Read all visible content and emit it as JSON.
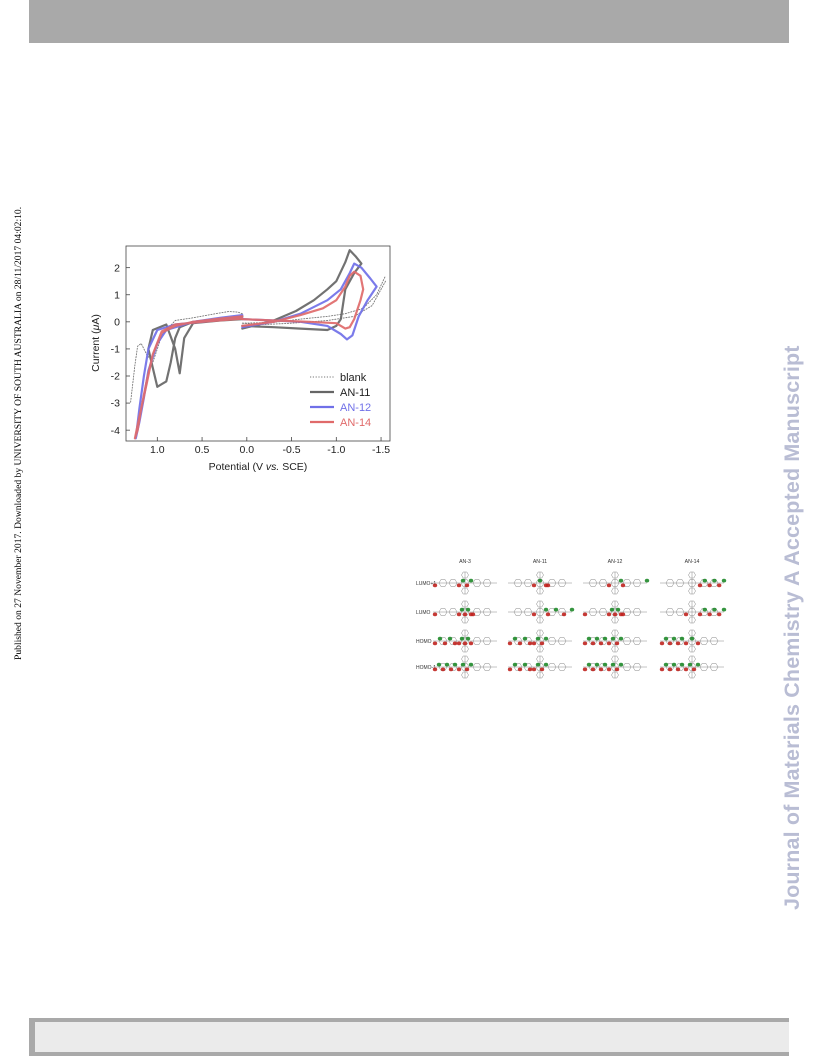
{
  "header": {},
  "side_note": "Published on 27 November 2017. Downloaded by UNIVERSITY OF SOUTH AUSTRALIA on 28/11/2017 04:02:10.",
  "watermark": "Journal of Materials Chemistry A Accepted Manuscript",
  "chart_data": {
    "type": "line",
    "xlabel_parts": [
      "Potential (V ",
      "vs.",
      " SCE)"
    ],
    "ylabel_parts": [
      "Current (",
      "μ",
      "A)"
    ],
    "xlim": [
      1.35,
      -1.6
    ],
    "ylim": [
      -4.4,
      2.8
    ],
    "xticks": [
      1.0,
      0.5,
      0.0,
      -0.5,
      -1.0,
      -1.5
    ],
    "xtick_labels": [
      "1.0",
      "0.5",
      "0.0",
      "-0.5",
      "-1.0",
      "-1.5"
    ],
    "yticks": [
      2,
      1,
      0,
      -1,
      -2,
      -3,
      -4
    ],
    "ytick_labels": [
      "2",
      "1",
      "0",
      "-1",
      "-2",
      "-3",
      "-4"
    ],
    "legend_position": "bottom-right",
    "colors": {
      "blank": "#777777",
      "AN-11": "#666666",
      "AN-12": "#7070e8",
      "AN-14": "#e06a6a"
    },
    "series": [
      {
        "name": "blank",
        "style": "dotted",
        "segments": [
          [
            [
              0.05,
              0.3
            ],
            [
              0.1,
              0.36
            ],
            [
              0.2,
              0.38
            ],
            [
              0.35,
              0.3
            ],
            [
              0.6,
              0.15
            ],
            [
              0.8,
              0.05
            ],
            [
              0.95,
              -0.5
            ],
            [
              1.05,
              -1.5
            ],
            [
              1.12,
              -1.2
            ],
            [
              1.18,
              -0.8
            ],
            [
              1.22,
              -0.9
            ],
            [
              1.25,
              -1.6
            ],
            [
              1.3,
              -3.0
            ]
          ],
          [
            [
              0.05,
              -0.05
            ],
            [
              -0.3,
              -0.02
            ],
            [
              -0.6,
              0.1
            ],
            [
              -0.9,
              0.2
            ],
            [
              -1.1,
              0.3
            ],
            [
              -1.3,
              0.5
            ],
            [
              -1.45,
              1.0
            ],
            [
              -1.55,
              1.7
            ]
          ],
          [
            [
              -1.55,
              1.5
            ],
            [
              -1.4,
              0.6
            ],
            [
              -1.2,
              0.2
            ],
            [
              -0.9,
              0.05
            ],
            [
              -0.5,
              -0.05
            ],
            [
              -0.2,
              -0.1
            ],
            [
              0.05,
              -0.05
            ]
          ]
        ]
      },
      {
        "name": "AN-11",
        "style": "solid",
        "segments": [
          [
            [
              0.05,
              -0.25
            ],
            [
              -0.3,
              0.05
            ],
            [
              -0.55,
              0.4
            ],
            [
              -0.75,
              0.8
            ],
            [
              -0.9,
              1.2
            ],
            [
              -1.0,
              1.5
            ],
            [
              -1.1,
              2.2
            ],
            [
              -1.15,
              2.65
            ],
            [
              -1.22,
              2.4
            ],
            [
              -1.28,
              2.15
            ],
            [
              -1.2,
              1.8
            ],
            [
              -1.1,
              1.2
            ],
            [
              -1.05,
              0.1
            ],
            [
              -1.0,
              -0.15
            ],
            [
              -0.9,
              -0.3
            ],
            [
              -0.6,
              -0.25
            ],
            [
              -0.3,
              -0.2
            ],
            [
              0.05,
              -0.15
            ]
          ],
          [
            [
              0.05,
              0.2
            ],
            [
              0.3,
              0.1
            ],
            [
              0.6,
              0.0
            ],
            [
              0.75,
              -0.2
            ],
            [
              0.8,
              -0.6
            ],
            [
              0.85,
              -1.5
            ],
            [
              0.9,
              -2.2
            ],
            [
              0.95,
              -2.3
            ],
            [
              1.0,
              -2.4
            ],
            [
              1.05,
              -1.7
            ],
            [
              1.1,
              -1.0
            ],
            [
              1.05,
              -0.3
            ],
            [
              0.9,
              -0.1
            ],
            [
              0.8,
              -1.0
            ],
            [
              0.75,
              -1.9
            ],
            [
              0.7,
              -0.6
            ],
            [
              0.6,
              -0.05
            ],
            [
              0.3,
              0.05
            ],
            [
              0.05,
              0.1
            ]
          ]
        ]
      },
      {
        "name": "AN-12",
        "style": "solid",
        "segments": [
          [
            [
              0.05,
              -0.2
            ],
            [
              -0.3,
              0.0
            ],
            [
              -0.6,
              0.3
            ],
            [
              -0.9,
              0.8
            ],
            [
              -1.05,
              1.2
            ],
            [
              -1.15,
              1.8
            ],
            [
              -1.2,
              2.15
            ],
            [
              -1.28,
              2.0
            ],
            [
              -1.38,
              1.6
            ],
            [
              -1.45,
              1.3
            ],
            [
              -1.35,
              0.8
            ],
            [
              -1.25,
              0.2
            ],
            [
              -1.18,
              -0.5
            ],
            [
              -1.12,
              -0.65
            ],
            [
              -1.05,
              -0.45
            ],
            [
              -0.9,
              -0.15
            ],
            [
              -0.6,
              0.0
            ],
            [
              -0.3,
              0.05
            ],
            [
              0.05,
              0.1
            ]
          ],
          [
            [
              0.05,
              0.25
            ],
            [
              0.3,
              0.15
            ],
            [
              0.6,
              0.0
            ],
            [
              0.75,
              -0.15
            ],
            [
              0.9,
              -0.3
            ],
            [
              1.0,
              -0.8
            ],
            [
              1.1,
              -1.8
            ],
            [
              1.15,
              -2.8
            ],
            [
              1.2,
              -3.7
            ],
            [
              1.24,
              -4.3
            ],
            [
              1.2,
              -3.2
            ],
            [
              1.15,
              -2.0
            ],
            [
              1.1,
              -1.0
            ],
            [
              1.0,
              -0.3
            ],
            [
              0.8,
              -0.1
            ],
            [
              0.5,
              0.0
            ],
            [
              0.2,
              0.1
            ],
            [
              0.05,
              0.15
            ]
          ]
        ]
      },
      {
        "name": "AN-14",
        "style": "solid",
        "segments": [
          [
            [
              0.05,
              -0.15
            ],
            [
              -0.3,
              0.0
            ],
            [
              -0.6,
              0.25
            ],
            [
              -0.85,
              0.5
            ],
            [
              -1.0,
              0.8
            ],
            [
              -1.1,
              1.3
            ],
            [
              -1.15,
              1.7
            ],
            [
              -1.2,
              1.85
            ],
            [
              -1.27,
              1.7
            ],
            [
              -1.3,
              1.2
            ],
            [
              -1.27,
              0.8
            ],
            [
              -1.2,
              0.1
            ],
            [
              -1.15,
              -0.2
            ],
            [
              -1.1,
              -0.25
            ],
            [
              -1.0,
              -0.05
            ],
            [
              -0.7,
              0.0
            ],
            [
              -0.3,
              0.05
            ],
            [
              0.05,
              0.1
            ]
          ],
          [
            [
              0.05,
              0.2
            ],
            [
              0.3,
              0.12
            ],
            [
              0.6,
              0.0
            ],
            [
              0.8,
              -0.15
            ],
            [
              0.95,
              -0.4
            ],
            [
              1.05,
              -1.2
            ],
            [
              1.12,
              -2.2
            ],
            [
              1.18,
              -3.2
            ],
            [
              1.22,
              -4.0
            ],
            [
              1.25,
              -4.3
            ],
            [
              1.2,
              -3.5
            ],
            [
              1.12,
              -2.3
            ],
            [
              1.05,
              -1.2
            ],
            [
              0.95,
              -0.35
            ],
            [
              0.8,
              -0.1
            ],
            [
              0.5,
              0.0
            ],
            [
              0.2,
              0.08
            ],
            [
              0.05,
              0.12
            ]
          ]
        ]
      }
    ]
  },
  "orbital_figure": {
    "columns": [
      "AN-3",
      "AN-11",
      "AN-12",
      "AN-14"
    ],
    "rows": [
      "LUMO+1",
      "LUMO",
      "HOMO",
      "HOMO-1"
    ]
  },
  "footer": {}
}
